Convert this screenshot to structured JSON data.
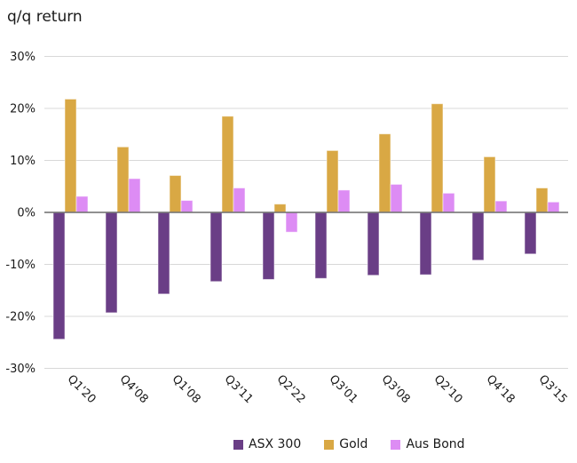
{
  "title": "q/q return",
  "chart_data": {
    "type": "bar",
    "title": "q/q return",
    "categories": [
      "Q1'20",
      "Q4'08",
      "Q1'08",
      "Q3'11",
      "Q2'22",
      "Q3'01",
      "Q3'08",
      "Q2'10",
      "Q4'18",
      "Q3'15"
    ],
    "series": [
      {
        "name": "ASX 300",
        "color": "#6A3E86",
        "values": [
          -24.4,
          -19.3,
          -15.7,
          -13.3,
          -12.9,
          -12.7,
          -12.1,
          -12.0,
          -9.2,
          -8.0
        ]
      },
      {
        "name": "Gold",
        "color": "#D9A844",
        "values": [
          21.8,
          12.6,
          7.1,
          18.5,
          1.6,
          11.9,
          15.1,
          20.9,
          10.7,
          4.7
        ]
      },
      {
        "name": "Aus Bond",
        "color": "#DD8CF4",
        "values": [
          3.1,
          6.5,
          2.3,
          4.7,
          -3.8,
          4.3,
          5.4,
          3.7,
          2.2,
          2.0
        ]
      }
    ],
    "ylabel": "",
    "xlabel": "",
    "ylim": [
      -30,
      30
    ],
    "ytick_step": 10,
    "ytick_labels": [
      "30%",
      "20%",
      "10%",
      "0%",
      "-10%",
      "-20%",
      "-30%"
    ],
    "grid": true,
    "legend_position": "bottom"
  },
  "colors": {
    "gridline": "#D8D8D8",
    "zero_line": "#6B6B6B",
    "text": "#1A1A1A",
    "background": "#FFFFFF",
    "bar_border": "rgba(255,255,255,0.55)"
  }
}
